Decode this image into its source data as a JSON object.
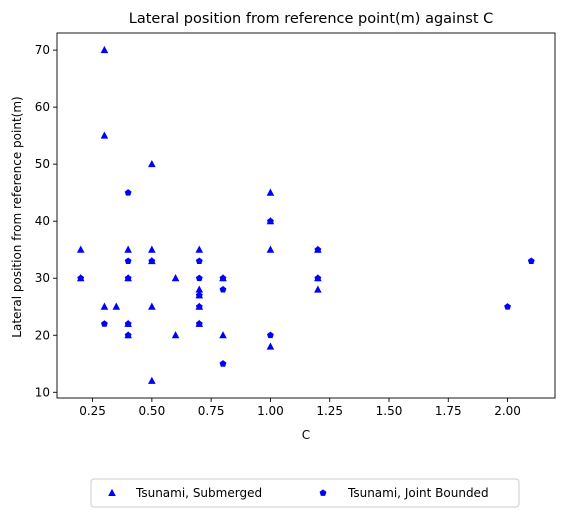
{
  "chart_data": {
    "type": "scatter",
    "title": "Lateral position from reference point(m) against C",
    "xlabel": "C",
    "ylabel": "Lateral position from reference point(m)",
    "xlim": [
      0.1,
      2.2
    ],
    "ylim": [
      9,
      73
    ],
    "xticks": [
      "0.25",
      "0.50",
      "0.75",
      "1.00",
      "1.25",
      "1.50",
      "1.75",
      "2.00"
    ],
    "yticks": [
      "10",
      "20",
      "30",
      "40",
      "50",
      "60",
      "70"
    ],
    "grid": false,
    "legend_position": "bottom-center",
    "series": [
      {
        "name": "Tsunami, Submerged",
        "marker": "triangle",
        "color": "#0000ff",
        "points": [
          [
            0.2,
            35
          ],
          [
            0.2,
            30
          ],
          [
            0.3,
            70
          ],
          [
            0.3,
            55
          ],
          [
            0.3,
            25
          ],
          [
            0.35,
            25
          ],
          [
            0.4,
            35
          ],
          [
            0.4,
            30
          ],
          [
            0.4,
            22
          ],
          [
            0.4,
            20
          ],
          [
            0.5,
            50
          ],
          [
            0.5,
            35
          ],
          [
            0.5,
            33
          ],
          [
            0.5,
            25
          ],
          [
            0.5,
            12
          ],
          [
            0.6,
            30
          ],
          [
            0.6,
            20
          ],
          [
            0.7,
            35
          ],
          [
            0.7,
            28
          ],
          [
            0.7,
            27
          ],
          [
            0.7,
            25
          ],
          [
            0.7,
            22
          ],
          [
            0.8,
            30
          ],
          [
            0.8,
            20
          ],
          [
            1.0,
            45
          ],
          [
            1.0,
            40
          ],
          [
            1.0,
            35
          ],
          [
            1.0,
            18
          ],
          [
            1.2,
            35
          ],
          [
            1.2,
            30
          ],
          [
            1.2,
            28
          ]
        ]
      },
      {
        "name": "Tsunami, Joint Bounded",
        "marker": "pentagon",
        "color": "#0000ff",
        "points": [
          [
            0.2,
            30
          ],
          [
            0.3,
            22
          ],
          [
            0.4,
            45
          ],
          [
            0.4,
            33
          ],
          [
            0.4,
            30
          ],
          [
            0.4,
            22
          ],
          [
            0.4,
            20
          ],
          [
            0.5,
            33
          ],
          [
            0.7,
            33
          ],
          [
            0.7,
            30
          ],
          [
            0.7,
            27
          ],
          [
            0.7,
            25
          ],
          [
            0.7,
            22
          ],
          [
            0.8,
            30
          ],
          [
            0.8,
            28
          ],
          [
            0.8,
            15
          ],
          [
            1.0,
            40
          ],
          [
            1.0,
            20
          ],
          [
            1.2,
            35
          ],
          [
            1.2,
            30
          ],
          [
            2.0,
            25
          ],
          [
            2.1,
            33
          ]
        ]
      }
    ]
  }
}
